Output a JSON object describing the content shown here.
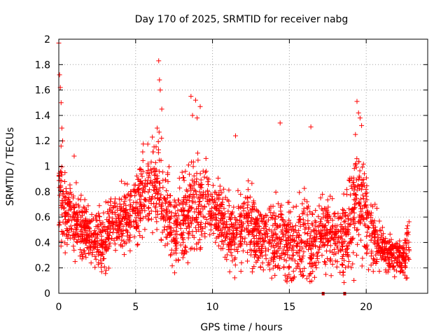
{
  "chart_data": {
    "type": "scatter",
    "title": "Day 170 of 2025, SRMTID for receiver nabg",
    "xlabel": "GPS time / hours",
    "ylabel": "SRMTID / TECUs",
    "xlim": [
      0,
      24
    ],
    "ylim": [
      0,
      2
    ],
    "xticks": [
      0,
      5,
      10,
      15,
      20
    ],
    "xtick_labels": [
      "0",
      "5",
      "10",
      "15",
      "20"
    ],
    "yticks": [
      0,
      0.2,
      0.4,
      0.6,
      0.8,
      1,
      1.2,
      1.4,
      1.6,
      1.8,
      2
    ],
    "ytick_labels": [
      "0",
      "0.2",
      "0.4",
      "0.6",
      "0.8",
      "1",
      "1.2",
      "1.4",
      "1.6",
      "1.8",
      "2"
    ],
    "grid": true,
    "marker": "+",
    "marker_color": "#ff0000",
    "data_gap_markers_x": [
      17.2,
      18.6
    ],
    "envelope": {
      "x": [
        0,
        0.3,
        1,
        2,
        3,
        3.6,
        4.5,
        5,
        5.5,
        6.2,
        6.5,
        7,
        7.5,
        8,
        8.6,
        9,
        9.5,
        10,
        10.5,
        11,
        11.5,
        12,
        12.5,
        13,
        13.5,
        14,
        14.5,
        15,
        15.5,
        16,
        16.5,
        17,
        17.5,
        18,
        18.5,
        19,
        19.4,
        19.8,
        20.3,
        21,
        21.5,
        22,
        22.5,
        22.8
      ],
      "median": [
        0.85,
        0.65,
        0.58,
        0.45,
        0.42,
        0.55,
        0.6,
        0.62,
        0.78,
        0.85,
        0.85,
        0.65,
        0.55,
        0.55,
        0.7,
        0.72,
        0.7,
        0.65,
        0.6,
        0.48,
        0.45,
        0.55,
        0.5,
        0.45,
        0.48,
        0.45,
        0.45,
        0.38,
        0.4,
        0.45,
        0.35,
        0.45,
        0.5,
        0.4,
        0.4,
        0.55,
        0.8,
        0.7,
        0.5,
        0.35,
        0.28,
        0.3,
        0.28,
        0.45
      ],
      "spread": [
        0.3,
        0.2,
        0.18,
        0.15,
        0.18,
        0.18,
        0.16,
        0.2,
        0.25,
        0.28,
        0.3,
        0.25,
        0.22,
        0.25,
        0.25,
        0.25,
        0.2,
        0.2,
        0.2,
        0.2,
        0.2,
        0.2,
        0.2,
        0.18,
        0.2,
        0.2,
        0.2,
        0.22,
        0.2,
        0.22,
        0.22,
        0.2,
        0.2,
        0.18,
        0.2,
        0.25,
        0.35,
        0.25,
        0.18,
        0.12,
        0.1,
        0.1,
        0.12,
        0.18
      ]
    },
    "peaks": [
      {
        "x": 0.0,
        "y": 1.97
      },
      {
        "x": 0.05,
        "y": 1.72
      },
      {
        "x": 0.1,
        "y": 1.62
      },
      {
        "x": 0.15,
        "y": 1.5
      },
      {
        "x": 0.2,
        "y": 1.3
      },
      {
        "x": 0.25,
        "y": 1.2
      },
      {
        "x": 0.4,
        "y": 0.95
      },
      {
        "x": 1.0,
        "y": 1.08
      },
      {
        "x": 6.5,
        "y": 1.83
      },
      {
        "x": 6.55,
        "y": 1.68
      },
      {
        "x": 6.6,
        "y": 1.6
      },
      {
        "x": 6.7,
        "y": 1.45
      },
      {
        "x": 6.4,
        "y": 1.3
      },
      {
        "x": 8.6,
        "y": 1.55
      },
      {
        "x": 8.9,
        "y": 1.52
      },
      {
        "x": 9.2,
        "y": 1.47
      },
      {
        "x": 8.7,
        "y": 1.4
      },
      {
        "x": 9.0,
        "y": 1.38
      },
      {
        "x": 11.5,
        "y": 1.24
      },
      {
        "x": 14.4,
        "y": 1.34
      },
      {
        "x": 16.4,
        "y": 1.31
      },
      {
        "x": 19.4,
        "y": 1.51
      },
      {
        "x": 19.5,
        "y": 1.42
      },
      {
        "x": 19.6,
        "y": 1.38
      },
      {
        "x": 19.3,
        "y": 1.25
      },
      {
        "x": 19.7,
        "y": 1.32
      }
    ]
  }
}
